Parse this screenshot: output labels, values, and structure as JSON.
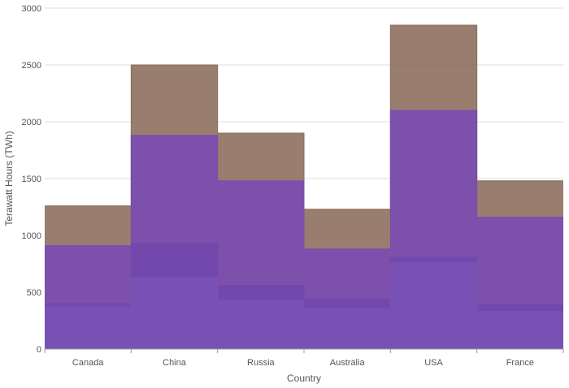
{
  "chart_data": {
    "type": "area",
    "step": true,
    "categories": [
      "Canada",
      "China",
      "Russia",
      "Australia",
      "USA",
      "France"
    ],
    "xlabel": "Country",
    "ylabel": "Terawatt Hours (TWh)",
    "ylim": [
      0,
      3000
    ],
    "yticks": [
      0,
      500,
      1000,
      1500,
      2000,
      2500,
      3000
    ],
    "grid": true,
    "series": [
      {
        "color": "#8b6b5a",
        "values": [
          1260,
          2500,
          1900,
          1230,
          2850,
          1480
        ]
      },
      {
        "color": "#7a4cb0",
        "values": [
          910,
          1880,
          1480,
          880,
          2100,
          1160
        ]
      },
      {
        "color": "#7248ad",
        "values": [
          400,
          930,
          560,
          440,
          810,
          390
        ]
      },
      {
        "color": "#7a52b4",
        "values": [
          370,
          630,
          430,
          360,
          760,
          330
        ]
      }
    ]
  }
}
